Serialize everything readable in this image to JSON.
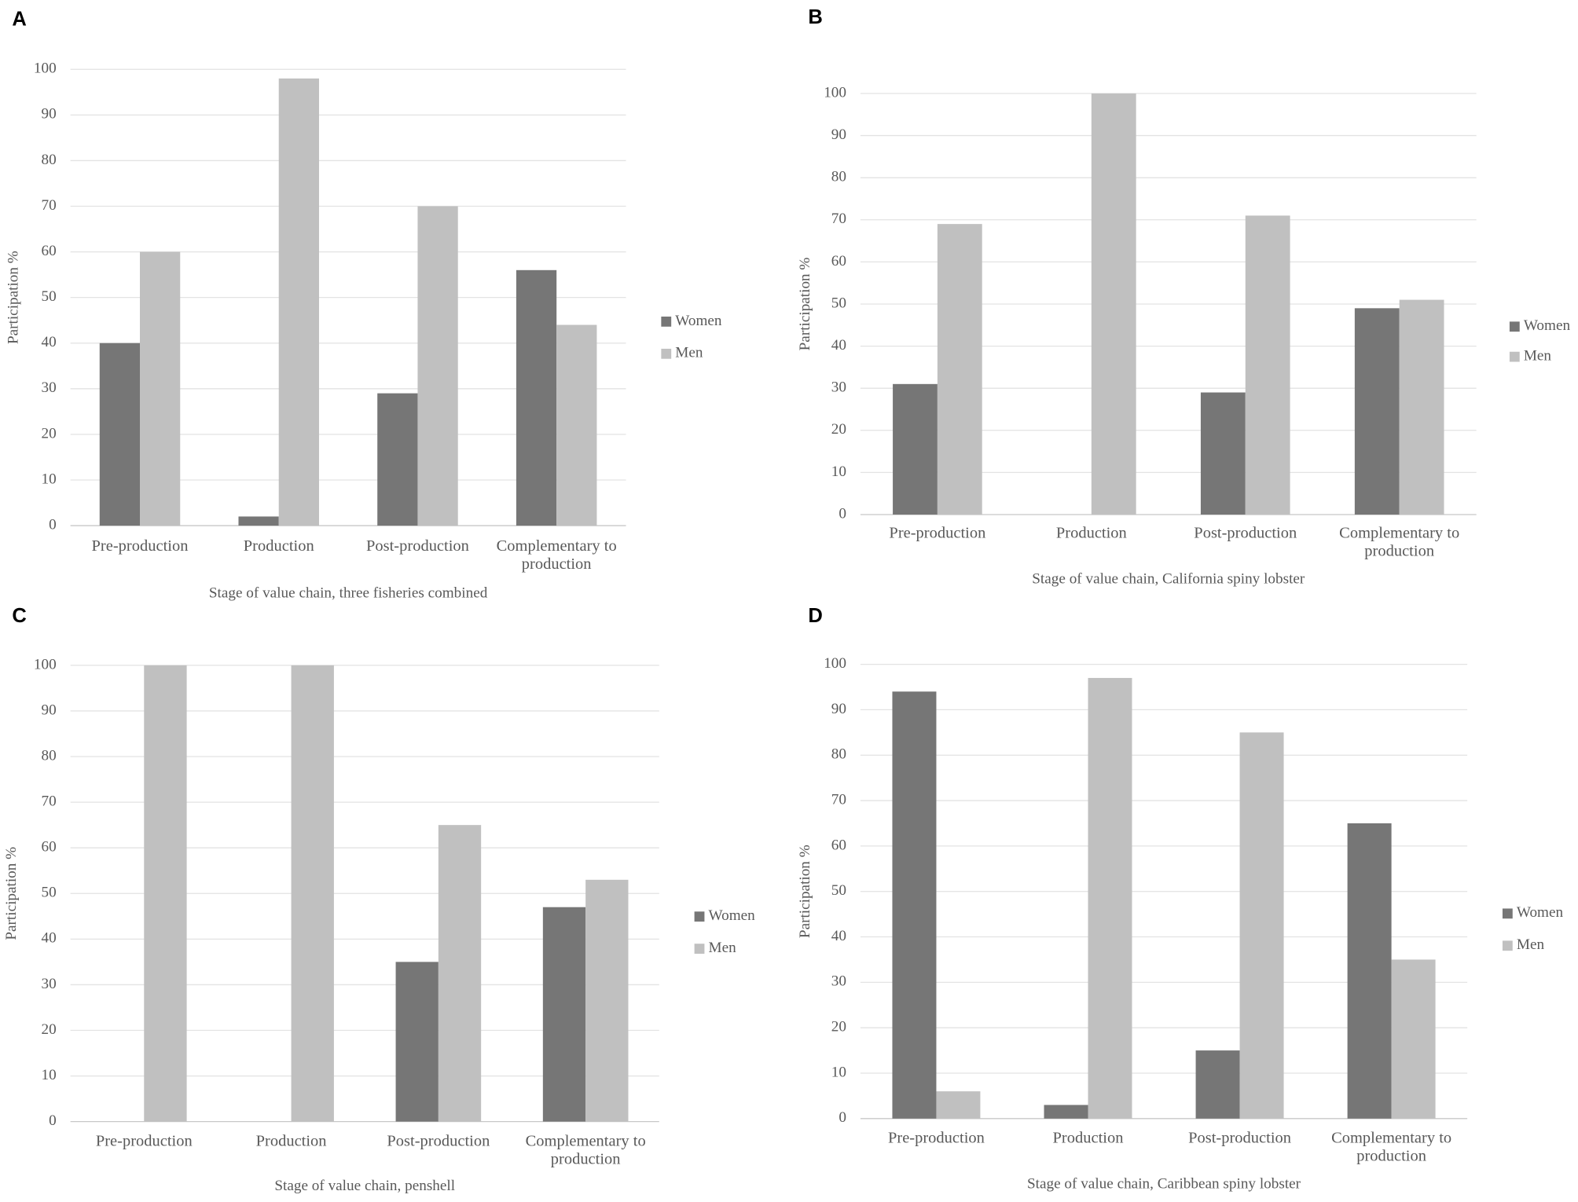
{
  "chart_data": [
    {
      "type": "bar",
      "panel": "A",
      "x_label": "Stage of value chain, three fisheries combined",
      "y_label": "Participation %",
      "categories": [
        "Pre-production",
        "Production",
        "Post-production",
        "Complementary to production"
      ],
      "series": [
        {
          "name": "Women",
          "color": "#767676",
          "values": [
            40,
            2,
            29,
            56
          ]
        },
        {
          "name": "Men",
          "color": "#c0c0c0",
          "values": [
            60,
            98,
            70,
            44
          ]
        }
      ],
      "ylim": [
        0,
        100
      ],
      "yticks": [
        0,
        10,
        20,
        30,
        40,
        50,
        60,
        70,
        80,
        90,
        100
      ],
      "grid": true
    },
    {
      "type": "bar",
      "panel": "B",
      "x_label": "Stage of value chain, California spiny lobster",
      "y_label": "Participation %",
      "categories": [
        "Pre-production",
        "Production",
        "Post-production",
        "Complementary to production"
      ],
      "series": [
        {
          "name": "Women",
          "color": "#767676",
          "values": [
            31,
            0,
            29,
            49
          ]
        },
        {
          "name": "Men",
          "color": "#c0c0c0",
          "values": [
            69,
            100,
            71,
            51
          ]
        }
      ],
      "ylim": [
        0,
        100
      ],
      "yticks": [
        0,
        10,
        20,
        30,
        40,
        50,
        60,
        70,
        80,
        90,
        100
      ],
      "grid": true
    },
    {
      "type": "bar",
      "panel": "C",
      "x_label": "Stage of value chain, penshell",
      "y_label": "Participation %",
      "categories": [
        "Pre-production",
        "Production",
        "Post-production",
        "Complementary to production"
      ],
      "series": [
        {
          "name": "Women",
          "color": "#767676",
          "values": [
            0,
            0,
            35,
            47
          ]
        },
        {
          "name": "Men",
          "color": "#c0c0c0",
          "values": [
            100,
            100,
            65,
            53
          ]
        }
      ],
      "ylim": [
        0,
        100
      ],
      "yticks": [
        0,
        10,
        20,
        30,
        40,
        50,
        60,
        70,
        80,
        90,
        100
      ],
      "grid": true
    },
    {
      "type": "bar",
      "panel": "D",
      "x_label": "Stage of value chain, Caribbean spiny lobster",
      "y_label": "Participation %",
      "categories": [
        "Pre-production",
        "Production",
        "Post-production",
        "Complementary to production"
      ],
      "series": [
        {
          "name": "Women",
          "color": "#767676",
          "values": [
            94,
            3,
            15,
            65
          ]
        },
        {
          "name": "Men",
          "color": "#c0c0c0",
          "values": [
            6,
            97,
            85,
            35
          ]
        }
      ],
      "ylim": [
        0,
        100
      ],
      "yticks": [
        0,
        10,
        20,
        30,
        40,
        50,
        60,
        70,
        80,
        90,
        100
      ],
      "grid": true
    }
  ]
}
